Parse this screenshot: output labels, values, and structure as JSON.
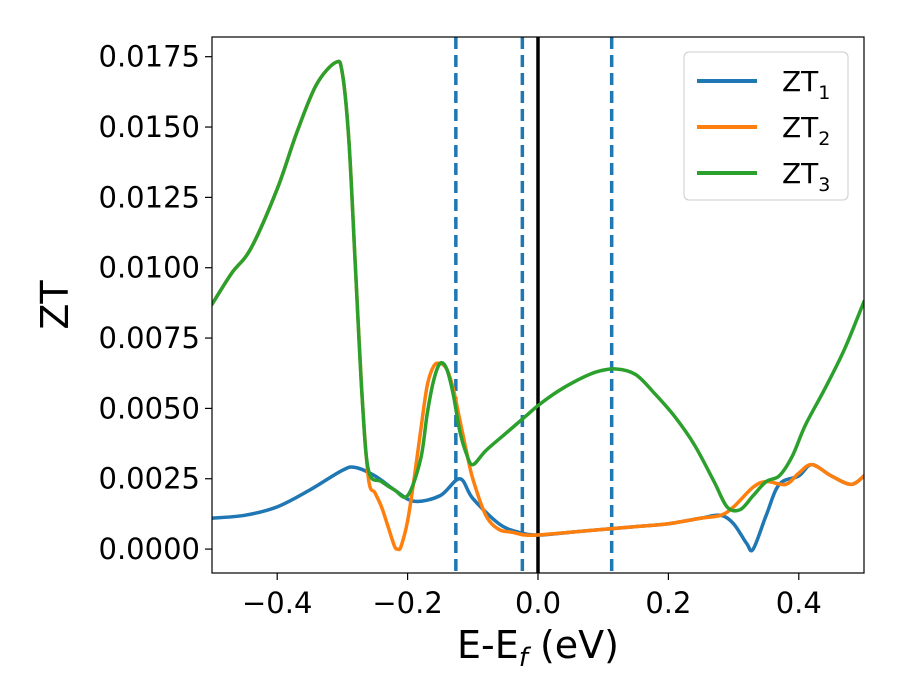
{
  "chart_data": {
    "type": "line",
    "xlabel": {
      "main": "E-E",
      "sub": "f",
      "suffix": " (eV)"
    },
    "ylabel": "ZT",
    "xlim": [
      -0.5,
      0.5
    ],
    "ylim": [
      -0.00085,
      0.0182
    ],
    "x_ticks": [
      -0.4,
      -0.2,
      0.0,
      0.2,
      0.4
    ],
    "x_tick_labels": [
      "−0.4",
      "−0.2",
      "0.0",
      "0.2",
      "0.4"
    ],
    "y_ticks": [
      0.0,
      0.0025,
      0.005,
      0.0075,
      0.01,
      0.0125,
      0.015,
      0.0175
    ],
    "y_tick_labels": [
      "0.0000",
      "0.0025",
      "0.0050",
      "0.0075",
      "0.0100",
      "0.0125",
      "0.0150",
      "0.0175"
    ],
    "grid": false,
    "legend_position": "top-right",
    "colors": {
      "ZT1": "#1f77b4",
      "ZT2": "#ff7f0e",
      "ZT3": "#2ca02c",
      "fermi_line": "#000000",
      "dashed_lines": "#1f77b4"
    },
    "vertical_lines": [
      {
        "x": 0.0,
        "style": "solid",
        "color": "#000000"
      },
      {
        "x": -0.126,
        "style": "dashed",
        "color": "#1f77b4"
      },
      {
        "x": -0.024,
        "style": "dashed",
        "color": "#1f77b4"
      },
      {
        "x": 0.113,
        "style": "dashed",
        "color": "#1f77b4"
      }
    ],
    "series": [
      {
        "name": "ZT",
        "sub": "1",
        "color": "#1f77b4",
        "x": [
          -0.5,
          -0.45,
          -0.4,
          -0.35,
          -0.3,
          -0.28,
          -0.25,
          -0.22,
          -0.19,
          -0.15,
          -0.12,
          -0.1,
          -0.06,
          -0.03,
          0.0,
          0.05,
          0.1,
          0.15,
          0.2,
          0.25,
          0.28,
          0.3,
          0.32,
          0.33,
          0.35,
          0.37,
          0.4,
          0.42,
          0.45,
          0.48,
          0.5
        ],
        "values": [
          0.0011,
          0.0012,
          0.0015,
          0.0021,
          0.0028,
          0.0029,
          0.0026,
          0.0021,
          0.0017,
          0.0019,
          0.0025,
          0.0018,
          0.0009,
          0.0006,
          0.0005,
          0.0006,
          0.0007,
          0.0008,
          0.0009,
          0.0011,
          0.0012,
          0.0009,
          0.0002,
          0.0,
          0.0012,
          0.0023,
          0.0026,
          0.003,
          0.0026,
          0.0023,
          0.0026
        ]
      },
      {
        "name": "ZT",
        "sub": "2",
        "color": "#ff7f0e",
        "x": [
          -0.5,
          -0.47,
          -0.44,
          -0.4,
          -0.37,
          -0.34,
          -0.31,
          -0.3,
          -0.29,
          -0.28,
          -0.27,
          -0.26,
          -0.25,
          -0.24,
          -0.23,
          -0.22,
          -0.215,
          -0.21,
          -0.2,
          -0.19,
          -0.18,
          -0.17,
          -0.16,
          -0.15,
          -0.14,
          -0.13,
          -0.12,
          -0.11,
          -0.1,
          -0.08,
          -0.06,
          -0.04,
          -0.02,
          0.0,
          0.05,
          0.1,
          0.15,
          0.2,
          0.25,
          0.28,
          0.3,
          0.33,
          0.35,
          0.38,
          0.4,
          0.42,
          0.45,
          0.48,
          0.5
        ],
        "values": [
          0.0087,
          0.0098,
          0.0107,
          0.0128,
          0.0148,
          0.0165,
          0.0173,
          0.0169,
          0.0145,
          0.01,
          0.0055,
          0.0025,
          0.002,
          0.0015,
          0.0008,
          0.0001,
          0.0,
          0.0001,
          0.001,
          0.0025,
          0.0042,
          0.0058,
          0.0065,
          0.0066,
          0.0064,
          0.0057,
          0.0046,
          0.0035,
          0.0025,
          0.0012,
          0.0007,
          0.0006,
          0.0005,
          0.0005,
          0.0006,
          0.0007,
          0.0008,
          0.0009,
          0.0011,
          0.0012,
          0.0015,
          0.0022,
          0.0024,
          0.0023,
          0.0027,
          0.003,
          0.0026,
          0.0023,
          0.0026
        ]
      },
      {
        "name": "ZT",
        "sub": "3",
        "color": "#2ca02c",
        "x": [
          -0.5,
          -0.47,
          -0.44,
          -0.4,
          -0.37,
          -0.34,
          -0.31,
          -0.3,
          -0.29,
          -0.28,
          -0.27,
          -0.26,
          -0.24,
          -0.22,
          -0.2,
          -0.18,
          -0.17,
          -0.16,
          -0.15,
          -0.14,
          -0.13,
          -0.12,
          -0.11,
          -0.1,
          -0.08,
          -0.05,
          -0.02,
          0.0,
          0.03,
          0.06,
          0.09,
          0.12,
          0.15,
          0.18,
          0.21,
          0.24,
          0.27,
          0.29,
          0.31,
          0.33,
          0.35,
          0.37,
          0.39,
          0.41,
          0.44,
          0.47,
          0.5
        ],
        "values": [
          0.0087,
          0.0098,
          0.0107,
          0.0128,
          0.0148,
          0.0165,
          0.0173,
          0.0169,
          0.0145,
          0.01,
          0.0055,
          0.0028,
          0.0024,
          0.0021,
          0.0019,
          0.0032,
          0.0048,
          0.006,
          0.0066,
          0.0064,
          0.0055,
          0.0042,
          0.0034,
          0.003,
          0.0035,
          0.0041,
          0.0047,
          0.0051,
          0.0056,
          0.006,
          0.0063,
          0.0064,
          0.0062,
          0.0055,
          0.0047,
          0.0037,
          0.0024,
          0.0015,
          0.0014,
          0.0019,
          0.0024,
          0.0026,
          0.0033,
          0.0044,
          0.0057,
          0.0071,
          0.0088
        ]
      }
    ]
  }
}
